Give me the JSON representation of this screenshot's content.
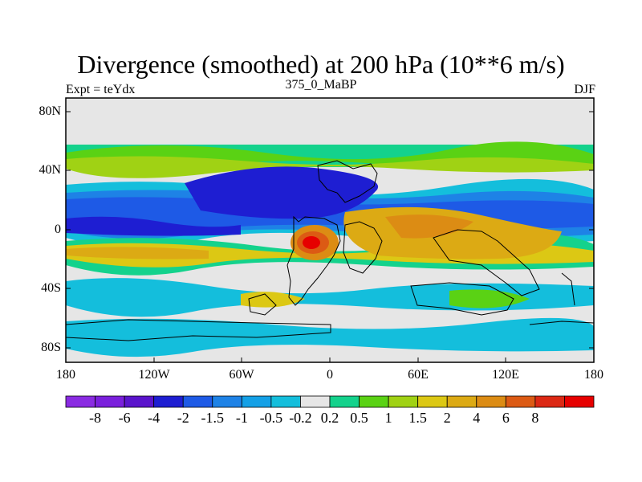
{
  "title": "Divergence (smoothed) at 200 hPa (10**6 m/s)",
  "subtitle_left": "Expt = teYdx",
  "subtitle_center": "375_0_MaBP",
  "subtitle_right": "DJF",
  "lat_labels": [
    "80N",
    "40N",
    "0",
    "40S",
    "80S"
  ],
  "lon_labels": [
    "180",
    "120W",
    "60W",
    "0",
    "60E",
    "120E",
    "180"
  ],
  "colorbar": {
    "colors": [
      "#8a2be2",
      "#7a1fdc",
      "#5a14cc",
      "#1e1ed2",
      "#1e5ae6",
      "#1e82e6",
      "#14a0e6",
      "#14bedc",
      "#e6e6e6",
      "#14d28c",
      "#5ad214",
      "#a0d214",
      "#dcc814",
      "#dcaa14",
      "#dc8c14",
      "#dc5a14",
      "#dc2814",
      "#e60000"
    ],
    "labels": [
      "-8",
      "-6",
      "-4",
      "-2",
      "-1.5",
      "-1",
      "-0.5",
      "-0.2",
      "0.2",
      "0.5",
      "1",
      "1.5",
      "2",
      "4",
      "6",
      "8"
    ]
  }
}
